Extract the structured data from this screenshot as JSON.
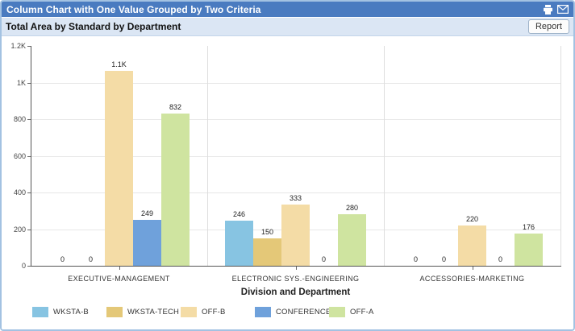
{
  "window": {
    "title": "Column Chart with One Value Grouped by Two Criteria",
    "icons": [
      "print-icon",
      "email-icon"
    ]
  },
  "header": {
    "title": "Total Area by Standard by Department",
    "report_label": "Report"
  },
  "colors": {
    "title_bar": "#4a7bc0",
    "title_text": "#ffffff",
    "subtitle_bar": "#dbe6f4",
    "window_border": "#a3c2e2",
    "axis": "#555555",
    "gridline": "#e7e7e7",
    "group_separator": "#dedede"
  },
  "chart_data": {
    "type": "bar",
    "title": "Total Area by Standard by Department",
    "xlabel": "Division and Department",
    "ylabel": "",
    "ylim": [
      0,
      1200
    ],
    "grid": true,
    "legend_position": "bottom",
    "yticks": [
      {
        "value": 0,
        "label": "0"
      },
      {
        "value": 200,
        "label": "200"
      },
      {
        "value": 400,
        "label": "400"
      },
      {
        "value": 600,
        "label": "600"
      },
      {
        "value": 800,
        "label": "800"
      },
      {
        "value": 1000,
        "label": "1K"
      },
      {
        "value": 1200,
        "label": "1.2K"
      }
    ],
    "categories": [
      "EXECUTIVE-MANAGEMENT",
      "ELECTRONIC SYS.-ENGINEERING",
      "ACCESSORIES-MARKETING"
    ],
    "series": [
      {
        "name": "WKSTA-B",
        "color": "#87c4e2",
        "values": [
          0,
          246,
          0
        ],
        "labels": [
          "0",
          "246",
          "0"
        ]
      },
      {
        "name": "WKSTA-TECH",
        "color": "#e4c878",
        "values": [
          0,
          150,
          0
        ],
        "labels": [
          "0",
          "150",
          "0"
        ]
      },
      {
        "name": "OFF-B",
        "color": "#f4dca6",
        "values": [
          1063,
          333,
          220
        ],
        "labels": [
          "1.1K",
          "333",
          "220"
        ]
      },
      {
        "name": "CONFERENCE",
        "color": "#6fa1db",
        "values": [
          249,
          0,
          0
        ],
        "labels": [
          "249",
          "0",
          "0"
        ]
      },
      {
        "name": "OFF-A",
        "color": "#cfe4a0",
        "values": [
          832,
          280,
          176
        ],
        "labels": [
          "832",
          "280",
          "176"
        ]
      }
    ]
  }
}
